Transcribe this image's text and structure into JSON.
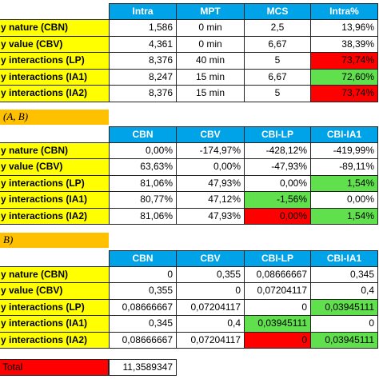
{
  "tables": [
    {
      "header": [
        "Intra",
        "MPT",
        "MCS",
        "Intra%"
      ],
      "rows": [
        {
          "label": "y nature (CBN)",
          "cells": [
            "1,586",
            "0 min",
            "2,5",
            "13,96%"
          ]
        },
        {
          "label": "y value (CBV)",
          "cells": [
            "4,361",
            "0 min",
            "6,67",
            "38,39%"
          ]
        },
        {
          "label": "y interactions (LP)",
          "cells": [
            "8,376",
            "40 min",
            "5",
            {
              "text": "73,74%",
              "fill": "#ff0000"
            }
          ]
        },
        {
          "label": "y interactions (IA1)",
          "cells": [
            "8,247",
            "15 min",
            "6,67",
            {
              "text": "72,60%",
              "fill": "#5fe04c"
            }
          ]
        },
        {
          "label": "y interactions (IA2)",
          "cells": [
            "8,376",
            "15 min",
            "5",
            {
              "text": "73,74%",
              "fill": "#ff0000"
            }
          ]
        }
      ]
    },
    {
      "section": "(A, B)",
      "header": [
        "CBN",
        "CBV",
        "CBI-LP",
        "CBI-IA1"
      ],
      "rows": [
        {
          "label": "y nature (CBN)",
          "cells": [
            "0,00%",
            "-174,97%",
            "-428,12%",
            "-419,99%"
          ]
        },
        {
          "label": "y value (CBV)",
          "cells": [
            "63,63%",
            "0,00%",
            "-47,93%",
            "-89,11%"
          ]
        },
        {
          "label": "y interactions (LP)",
          "cells": [
            "81,06%",
            "47,93%",
            "0,00%",
            {
              "text": "1,54%",
              "fill": "#5fe04c"
            }
          ]
        },
        {
          "label": "y interactions (IA1)",
          "cells": [
            "80,77%",
            "47,12%",
            {
              "text": "-1,56%",
              "fill": "#5fe04c"
            },
            "0,00%"
          ]
        },
        {
          "label": "y interactions (IA2)",
          "cells": [
            "81,06%",
            "47,93%",
            {
              "text": "0,00%",
              "fill": "#ff0000"
            },
            {
              "text": "1,54%",
              "fill": "#5fe04c"
            }
          ]
        }
      ]
    },
    {
      "section": "B)",
      "header": [
        "CBN",
        "CBV",
        "CBI-LP",
        "CBI-IA1"
      ],
      "rows": [
        {
          "label": "y nature (CBN)",
          "cells": [
            "0",
            "0,355",
            "0,08666667",
            "0,345"
          ]
        },
        {
          "label": "y value (CBV)",
          "cells": [
            "0,355",
            "0",
            "0,07204117",
            "0,4"
          ]
        },
        {
          "label": "y interactions (LP)",
          "cells": [
            "0,08666667",
            "0,07204117",
            "0",
            {
              "text": "0,03945111",
              "fill": "#5fe04c"
            }
          ]
        },
        {
          "label": "y interactions (IA1)",
          "cells": [
            "0,345",
            "0,4",
            {
              "text": "0,03945111",
              "fill": "#5fe04c"
            },
            "0"
          ]
        },
        {
          "label": "y interactions (IA2)",
          "cells": [
            "0,08666667",
            "0,07204117",
            {
              "text": "0",
              "fill": "#ff0000"
            },
            {
              "text": "0,03945111",
              "fill": "#5fe04c"
            }
          ]
        }
      ]
    }
  ],
  "total": {
    "label": "Total",
    "value": "11,3589347"
  }
}
